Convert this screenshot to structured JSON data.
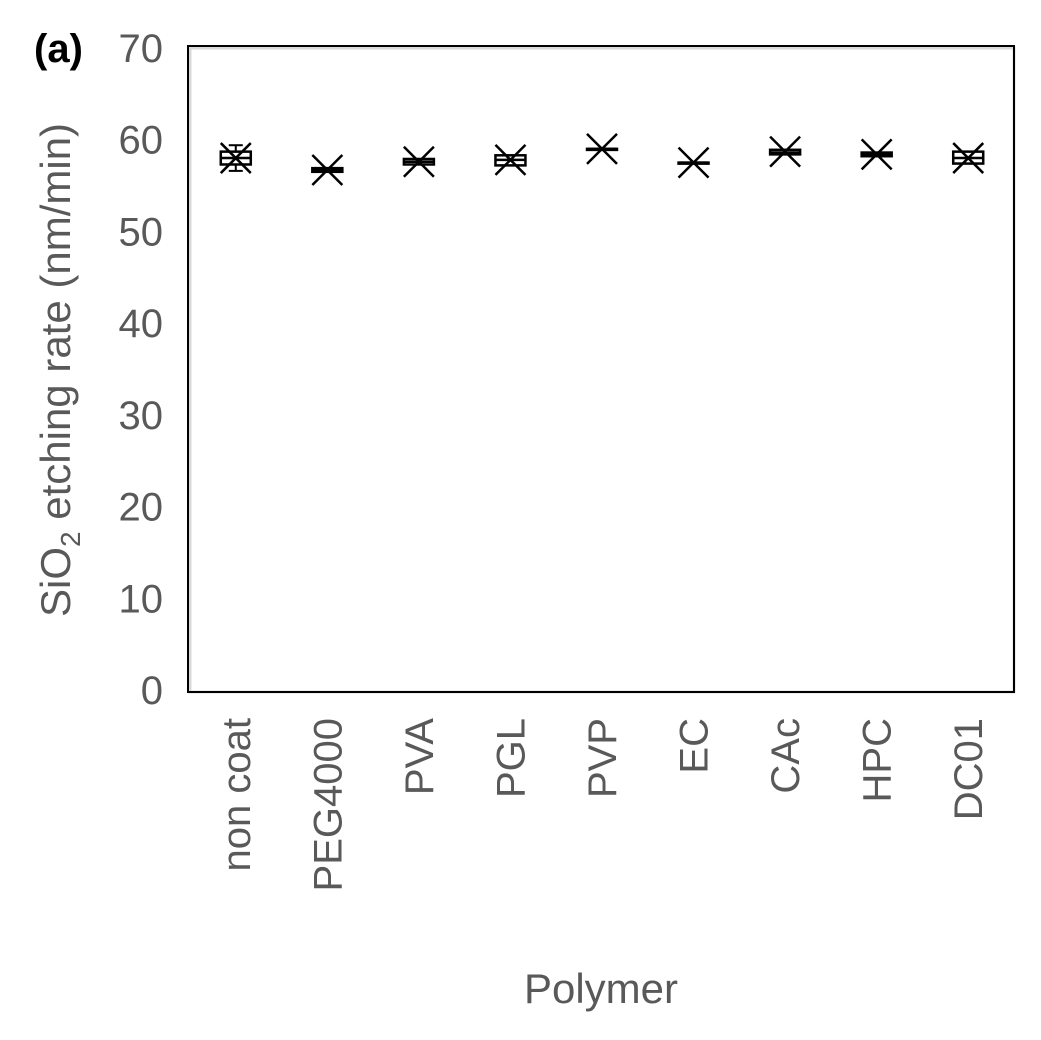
{
  "panel_label": "(a)",
  "chart_data": {
    "type": "box",
    "categories": [
      "non coat",
      "PEG4000",
      "PVA",
      "PGL",
      "PVP",
      "EC",
      "CAc",
      "HPC",
      "DC01"
    ],
    "xlabel": "Polymer",
    "ylabel_parts": {
      "prefix": "SiO",
      "subscript": "2",
      "suffix": " etching rate (nm/min)"
    },
    "ylim": [
      0,
      70
    ],
    "yticks": [
      "0",
      "10",
      "20",
      "30",
      "40",
      "50",
      "60",
      "70"
    ],
    "grid": false,
    "legend": "none",
    "boxes": [
      {
        "category": "non coat",
        "mean": 58.0,
        "q1": 57.3,
        "median": 58.0,
        "q3": 58.7,
        "min": 56.6,
        "max": 59.4
      },
      {
        "category": "PEG4000",
        "mean": 56.7,
        "q1": 56.5,
        "median": 56.7,
        "q3": 56.9,
        "min": 56.5,
        "max": 56.9
      },
      {
        "category": "PVA",
        "mean": 57.6,
        "q1": 57.3,
        "median": 57.6,
        "q3": 57.9,
        "min": 57.3,
        "max": 57.9
      },
      {
        "category": "PGL",
        "mean": 57.8,
        "q1": 57.2,
        "median": 57.8,
        "q3": 58.3,
        "min": 57.2,
        "max": 58.3
      },
      {
        "category": "PVP",
        "mean": 59.0,
        "q1": 59.0,
        "median": 59.0,
        "q3": 59.0,
        "min": 59.0,
        "max": 59.0
      },
      {
        "category": "EC",
        "mean": 57.5,
        "q1": 57.5,
        "median": 57.5,
        "q3": 57.5,
        "min": 57.5,
        "max": 57.5
      },
      {
        "category": "CAc",
        "mean": 58.7,
        "q1": 58.4,
        "median": 58.6,
        "q3": 58.9,
        "min": 58.4,
        "max": 58.9
      },
      {
        "category": "HPC",
        "mean": 58.4,
        "q1": 58.2,
        "median": 58.4,
        "q3": 58.6,
        "min": 58.2,
        "max": 58.6
      },
      {
        "category": "DC01",
        "mean": 58.0,
        "q1": 57.4,
        "median": 58.0,
        "q3": 58.7,
        "min": 57.4,
        "max": 58.7
      }
    ],
    "colors": {
      "marks": "#000000",
      "text": "#595959",
      "frame": "#000000"
    }
  }
}
